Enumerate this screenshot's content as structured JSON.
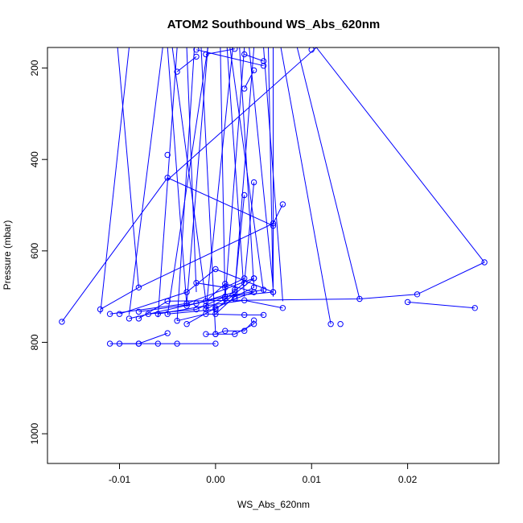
{
  "chart_data": {
    "type": "scatter",
    "title": "ATOM2 Southbound WS_Abs_620nm",
    "xlabel": "WS_Abs_620nm",
    "ylabel": "Pressure (mbar)",
    "xlim": [
      -0.0175,
      0.0295
    ],
    "ylim": [
      1065,
      155
    ],
    "y_reversed": true,
    "grid": false,
    "x_ticks": [
      {
        "value": -0.01,
        "label": "-0.01"
      },
      {
        "value": 0.0,
        "label": "0.00"
      },
      {
        "value": 0.01,
        "label": "0.01"
      },
      {
        "value": 0.02,
        "label": "0.02"
      }
    ],
    "y_ticks": [
      {
        "value": 200,
        "label": "200"
      },
      {
        "value": 400,
        "label": "400"
      },
      {
        "value": 600,
        "label": "600"
      },
      {
        "value": 800,
        "label": "800"
      },
      {
        "value": 1000,
        "label": "1000"
      }
    ],
    "color": "#0000ff",
    "marker": "open-circle",
    "series": [
      {
        "x": [
          -0.016,
          -0.005,
          0.006
        ],
        "y": [
          755,
          440,
          545
        ]
      },
      {
        "x": [
          -0.012,
          -0.008,
          0.006,
          0.007
        ],
        "y": [
          728,
          680,
          540,
          498
        ]
      },
      {
        "x": [
          -0.011,
          -0.003,
          0.004
        ],
        "y": [
          738,
          715,
          660
        ]
      },
      {
        "x": [
          -0.01,
          -0.003,
          0.0,
          0.006
        ],
        "y": [
          738,
          690,
          640,
          690
        ]
      },
      {
        "x": [
          -0.009,
          0.001,
          0.005
        ],
        "y": [
          748,
          700,
          685
        ]
      },
      {
        "x": [
          -0.008,
          -0.002,
          0.002
        ],
        "y": [
          733,
          715,
          690
        ]
      },
      {
        "x": [
          -0.008,
          -0.005,
          0.015,
          0.021,
          0.028
        ],
        "y": [
          748,
          710,
          705,
          695,
          625
        ]
      },
      {
        "x": [
          -0.007,
          -0.002,
          0.001,
          0.006
        ],
        "y": [
          738,
          728,
          700,
          690
        ]
      },
      {
        "x": [
          -0.006,
          -0.001,
          0.003,
          0.007
        ],
        "y": [
          738,
          720,
          708,
          725
        ]
      },
      {
        "x": [
          -0.005,
          0.0,
          0.004
        ],
        "y": [
          738,
          728,
          660
        ]
      },
      {
        "x": [
          -0.004,
          -0.001,
          0.003,
          0.005
        ],
        "y": [
          753,
          738,
          740,
          740
        ]
      },
      {
        "x": [
          -0.003,
          0.0,
          0.002,
          0.004
        ],
        "y": [
          760,
          725,
          705,
          690
        ]
      },
      {
        "x": [
          -0.003,
          -0.001,
          0.001,
          0.004
        ],
        "y": [
          720,
          710,
          672,
          690
        ]
      },
      {
        "x": [
          -0.002,
          0.001,
          0.003
        ],
        "y": [
          670,
          680,
          660
        ]
      },
      {
        "x": [
          -0.001,
          0.0,
          0.002,
          0.004
        ],
        "y": [
          782,
          782,
          782,
          760
        ]
      },
      {
        "x": [
          -0.001,
          0.001,
          0.003,
          0.004
        ],
        "y": [
          728,
          705,
          670,
          450
        ]
      },
      {
        "x": [
          0.0,
          0.002,
          0.004
        ],
        "y": [
          738,
          700,
          680
        ]
      },
      {
        "x": [
          0.0,
          0.001,
          0.003,
          0.004
        ],
        "y": [
          782,
          775,
          775,
          752
        ]
      },
      {
        "x": [
          -0.011,
          -0.008,
          -0.006,
          -0.004,
          0.0
        ],
        "y": [
          803,
          803,
          803,
          803,
          803
        ]
      },
      {
        "x": [
          -0.01,
          -0.008,
          -0.005
        ],
        "y": [
          803,
          803,
          780
        ]
      },
      {
        "x": [
          0.02,
          0.027
        ],
        "y": [
          712,
          725
        ]
      },
      {
        "x": [
          0.012
        ],
        "y": [
          760
        ]
      },
      {
        "x": [
          0.013
        ],
        "y": [
          760
        ]
      },
      {
        "x": [
          -0.005
        ],
        "y": [
          390
        ]
      },
      {
        "x": [
          0.002,
          0.003
        ],
        "y": [
          685,
          478
        ]
      },
      {
        "x": [
          0.003,
          0.004
        ],
        "y": [
          245,
          205
        ]
      },
      {
        "x": [
          -0.004,
          -0.002
        ],
        "y": [
          208,
          175
        ]
      },
      {
        "x": [
          -0.001,
          0.002
        ],
        "y": [
          170,
          158
        ]
      },
      {
        "x": [
          0.003,
          0.005
        ],
        "y": [
          170,
          185
        ]
      },
      {
        "x": [
          -0.002,
          0.005
        ],
        "y": [
          160,
          195
        ]
      },
      {
        "x": [
          0.01
        ],
        "y": [
          160
        ]
      }
    ]
  }
}
